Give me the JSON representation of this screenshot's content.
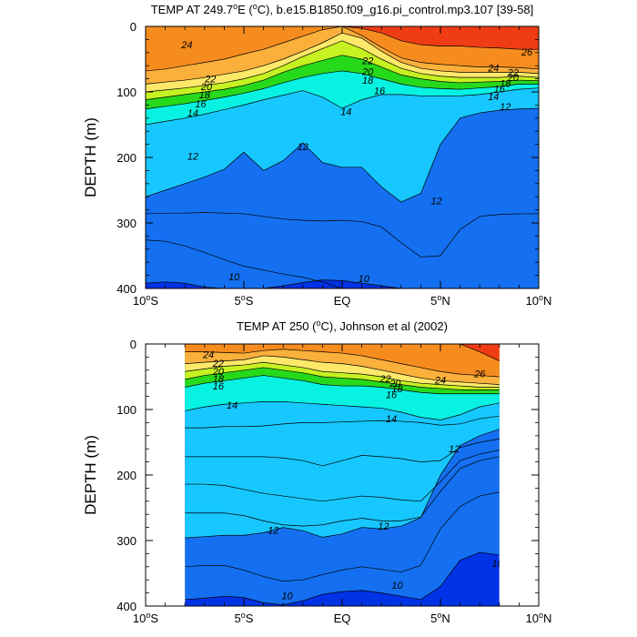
{
  "chart_data": [
    {
      "type": "contour",
      "title_pre": "TEMP AT 249.7",
      "title_sup": "o",
      "title_post": "E (",
      "title_sup2": "o",
      "title_end": "C), b.e15.B1850.f09_g16.pi_control.mp3.107 [39-58]",
      "ylabel": "DEPTH (m)",
      "xlim": [
        -10,
        10
      ],
      "ylim": [
        400,
        0
      ],
      "x_ticks": [
        {
          "v": -10,
          "main": "10",
          "sup": "o",
          "hemi": "S"
        },
        {
          "v": -5,
          "main": "5",
          "sup": "o",
          "hemi": "S"
        },
        {
          "v": 0,
          "main": "EQ",
          "sup": "",
          "hemi": ""
        },
        {
          "v": 5,
          "main": "5",
          "sup": "o",
          "hemi": "N"
        },
        {
          "v": 10,
          "main": "10",
          "sup": "o",
          "hemi": "N"
        }
      ],
      "y_ticks": [
        "0",
        "100",
        "200",
        "300",
        "400"
      ],
      "y_tick_values": [
        0,
        100,
        200,
        300,
        400
      ],
      "data_xrange": [
        -10,
        10
      ],
      "isotherms": [
        {
          "level": 26,
          "depths": [
            0,
            0,
            0,
            0,
            0,
            0,
            0,
            0,
            0,
            0,
            0,
            3,
            10,
            22,
            28,
            30,
            30,
            32,
            33,
            35,
            35
          ]
        },
        {
          "level": 24,
          "depths": [
            68,
            65,
            60,
            55,
            50,
            42,
            35,
            25,
            15,
            5,
            0,
            14,
            32,
            48,
            55,
            58,
            60,
            62,
            62,
            63,
            65
          ]
        },
        {
          "level": 22,
          "depths": [
            88,
            85,
            82,
            78,
            73,
            68,
            60,
            50,
            38,
            25,
            10,
            18,
            38,
            55,
            64,
            68,
            70,
            70,
            70,
            70,
            72
          ]
        },
        {
          "level": 20,
          "depths": [
            100,
            97,
            94,
            90,
            86,
            80,
            72,
            60,
            46,
            34,
            22,
            34,
            50,
            64,
            72,
            76,
            78,
            78,
            78,
            76,
            78
          ]
        },
        {
          "level": 18,
          "depths": [
            112,
            108,
            104,
            100,
            96,
            90,
            82,
            70,
            60,
            52,
            44,
            50,
            62,
            74,
            80,
            84,
            86,
            85,
            84,
            82,
            83
          ]
        },
        {
          "level": 16,
          "depths": [
            126,
            122,
            118,
            113,
            108,
            102,
            95,
            86,
            78,
            72,
            68,
            72,
            80,
            88,
            93,
            95,
            96,
            94,
            92,
            88,
            88
          ]
        },
        {
          "level": 14,
          "depths": [
            150,
            145,
            140,
            134,
            127,
            120,
            112,
            105,
            98,
            108,
            125,
            112,
            104,
            104,
            106,
            106,
            106,
            104,
            100,
            96,
            94
          ]
        },
        {
          "level": 12,
          "depths": [
            260,
            250,
            240,
            230,
            218,
            192,
            220,
            205,
            178,
            208,
            215,
            215,
            245,
            268,
            255,
            180,
            140,
            132,
            128,
            126,
            125
          ]
        },
        {
          "level": 10,
          "depths": [
            392,
            390,
            392,
            398,
            400,
            400,
            400,
            396,
            391,
            387,
            388,
            392,
            396,
            400,
            400,
            400,
            400,
            400,
            400,
            400,
            400
          ]
        }
      ],
      "extra_lines": [
        {
          "depths": [
            286,
            285,
            285,
            284,
            285,
            286,
            290,
            294,
            296,
            297,
            296,
            298,
            306,
            330,
            352,
            350,
            310,
            290,
            287,
            286,
            286
          ]
        },
        {
          "depths": [
            326,
            328,
            335,
            345,
            356,
            366,
            372,
            378,
            383,
            390,
            400,
            400,
            400,
            400,
            400,
            400,
            400,
            400,
            400,
            400,
            400
          ]
        }
      ],
      "contour_labels": [
        {
          "text": "24",
          "x": -7.9,
          "y": 28
        },
        {
          "text": "22",
          "x": -6.7,
          "y": 80
        },
        {
          "text": "20",
          "x": -6.9,
          "y": 92
        },
        {
          "text": "18",
          "x": -7.0,
          "y": 104
        },
        {
          "text": "16",
          "x": -7.2,
          "y": 118
        },
        {
          "text": "14",
          "x": -7.6,
          "y": 132
        },
        {
          "text": "22",
          "x": 1.3,
          "y": 52
        },
        {
          "text": "20",
          "x": 1.3,
          "y": 69
        },
        {
          "text": "18",
          "x": 1.3,
          "y": 82
        },
        {
          "text": "16",
          "x": 1.9,
          "y": 98
        },
        {
          "text": "14",
          "x": 0.2,
          "y": 130
        },
        {
          "text": "12",
          "x": -7.6,
          "y": 198
        },
        {
          "text": "12",
          "x": -2.0,
          "y": 183
        },
        {
          "text": "12",
          "x": 4.8,
          "y": 266
        },
        {
          "text": "24",
          "x": 7.7,
          "y": 63
        },
        {
          "text": "22",
          "x": 8.7,
          "y": 70
        },
        {
          "text": "20",
          "x": 8.7,
          "y": 78
        },
        {
          "text": "18",
          "x": 8.3,
          "y": 87
        },
        {
          "text": "16",
          "x": 8.0,
          "y": 95
        },
        {
          "text": "14",
          "x": 7.7,
          "y": 107
        },
        {
          "text": "12",
          "x": 8.3,
          "y": 122
        },
        {
          "text": "26",
          "x": 9.4,
          "y": 39
        },
        {
          "text": "10",
          "x": -5.5,
          "y": 382
        },
        {
          "text": "10",
          "x": 1.1,
          "y": 385
        }
      ]
    },
    {
      "type": "contour",
      "title_pre": "TEMP AT 250 (",
      "title_sup": "o",
      "title_post": "C), Johnson et al (2002)",
      "title_sup2": "",
      "title_end": "",
      "ylabel": "DEPTH (m)",
      "xlim": [
        -10,
        10
      ],
      "ylim": [
        400,
        0
      ],
      "x_ticks": [
        {
          "v": -10,
          "main": "10",
          "sup": "o",
          "hemi": "S"
        },
        {
          "v": -5,
          "main": "5",
          "sup": "o",
          "hemi": "S"
        },
        {
          "v": 0,
          "main": "EQ",
          "sup": "",
          "hemi": ""
        },
        {
          "v": 5,
          "main": "5",
          "sup": "o",
          "hemi": "N"
        },
        {
          "v": 10,
          "main": "10",
          "sup": "o",
          "hemi": "N"
        }
      ],
      "y_ticks": [
        "0",
        "100",
        "200",
        "300",
        "400"
      ],
      "y_tick_values": [
        0,
        100,
        200,
        300,
        400
      ],
      "data_xrange": [
        -8,
        8
      ],
      "isotherms": [
        {
          "level": 26,
          "depths": [
            0,
            0,
            0,
            0,
            0,
            0,
            0,
            0,
            0,
            0,
            0,
            0,
            0,
            0,
            0,
            0,
            0,
            12,
            26,
            34,
            36
          ]
        },
        {
          "level": 24,
          "depths": [
            0,
            0,
            12,
            12,
            13,
            14,
            10,
            8,
            10,
            12,
            14,
            18,
            24,
            30,
            36,
            42,
            46,
            48,
            50,
            52,
            55
          ]
        },
        {
          "level": 22,
          "depths": [
            0,
            0,
            30,
            28,
            26,
            24,
            18,
            20,
            24,
            28,
            30,
            34,
            40,
            46,
            52,
            56,
            58,
            60,
            62,
            62,
            64
          ]
        },
        {
          "level": 20,
          "depths": [
            0,
            0,
            42,
            38,
            34,
            32,
            28,
            32,
            36,
            42,
            44,
            46,
            50,
            56,
            60,
            62,
            64,
            66,
            66,
            67,
            68
          ]
        },
        {
          "level": 18,
          "depths": [
            0,
            0,
            54,
            48,
            44,
            40,
            36,
            40,
            44,
            50,
            52,
            54,
            58,
            62,
            66,
            68,
            70,
            70,
            70,
            72,
            73
          ]
        },
        {
          "level": 16,
          "depths": [
            0,
            0,
            66,
            60,
            56,
            52,
            48,
            52,
            56,
            62,
            64,
            64,
            66,
            70,
            74,
            76,
            76,
            76,
            76,
            77,
            78
          ]
        },
        {
          "level": 14,
          "depths": [
            0,
            0,
            102,
            96,
            92,
            90,
            88,
            88,
            90,
            92,
            94,
            96,
            98,
            104,
            112,
            116,
            108,
            96,
            90,
            90,
            92
          ]
        },
        {
          "level": 12,
          "depths": [
            0,
            0,
            296,
            294,
            292,
            292,
            288,
            280,
            285,
            295,
            290,
            280,
            282,
            278,
            265,
            200,
            155,
            140,
            130,
            125,
            125
          ]
        },
        {
          "level": 10,
          "depths": [
            0,
            0,
            390,
            388,
            385,
            387,
            395,
            398,
            392,
            382,
            378,
            376,
            380,
            385,
            390,
            370,
            330,
            318,
            322,
            338,
            340
          ]
        }
      ],
      "extra_lines": [
        {
          "depths": [
            0,
            0,
            128,
            128,
            126,
            126,
            125,
            122,
            120,
            120,
            119,
            118,
            117,
            118,
            120,
            124,
            122,
            114,
            110,
            108,
            108
          ]
        },
        {
          "depths": [
            0,
            0,
            172,
            172,
            172,
            172,
            172,
            174,
            178,
            186,
            178,
            170,
            172,
            175,
            180,
            178,
            158,
            150,
            145,
            142,
            140
          ]
        },
        {
          "depths": [
            0,
            0,
            214,
            214,
            216,
            222,
            228,
            232,
            236,
            240,
            236,
            232,
            234,
            238,
            240,
            210,
            178,
            168,
            162,
            158,
            156
          ]
        },
        {
          "depths": [
            0,
            0,
            258,
            258,
            258,
            262,
            270,
            276,
            278,
            276,
            270,
            266,
            270,
            270,
            264,
            225,
            190,
            178,
            172,
            168,
            166
          ]
        },
        {
          "depths": [
            0,
            0,
            340,
            338,
            338,
            345,
            355,
            362,
            360,
            352,
            345,
            340,
            344,
            348,
            338,
            282,
            248,
            232,
            226,
            228,
            232
          ]
        }
      ],
      "contour_labels": [
        {
          "text": "24",
          "x": -6.8,
          "y": 16
        },
        {
          "text": "22",
          "x": -6.3,
          "y": 29
        },
        {
          "text": "20",
          "x": -6.3,
          "y": 42
        },
        {
          "text": "18",
          "x": -6.3,
          "y": 53
        },
        {
          "text": "16",
          "x": -6.3,
          "y": 64
        },
        {
          "text": "14",
          "x": -5.6,
          "y": 93
        },
        {
          "text": "22",
          "x": 2.2,
          "y": 53
        },
        {
          "text": "20",
          "x": 2.7,
          "y": 60
        },
        {
          "text": "18",
          "x": 2.8,
          "y": 68
        },
        {
          "text": "16",
          "x": 2.5,
          "y": 77
        },
        {
          "text": "14",
          "x": 2.5,
          "y": 114
        },
        {
          "text": "24",
          "x": 5.0,
          "y": 55
        },
        {
          "text": "26",
          "x": 7.0,
          "y": 45
        },
        {
          "text": "12",
          "x": -3.5,
          "y": 284
        },
        {
          "text": "12",
          "x": 2.1,
          "y": 278
        },
        {
          "text": "12",
          "x": 5.7,
          "y": 160
        },
        {
          "text": "10",
          "x": -2.8,
          "y": 384
        },
        {
          "text": "10",
          "x": 2.8,
          "y": 368
        },
        {
          "text": "10",
          "x": 7.9,
          "y": 335
        }
      ]
    }
  ],
  "colors": {
    "bands": [
      {
        "above": 26,
        "color": "#f03c14"
      },
      {
        "above": 24,
        "color": "#f78c1e"
      },
      {
        "above": 22,
        "color": "#fbb03b"
      },
      {
        "above": 21,
        "color": "#fdd24a"
      },
      {
        "above": 20,
        "color": "#fee86a"
      },
      {
        "above": 19,
        "color": "#f2f524"
      },
      {
        "above": 18,
        "color": "#c6f221"
      },
      {
        "above": 17,
        "color": "#7cec1a"
      },
      {
        "above": 16,
        "color": "#27d91b"
      },
      {
        "above": 15,
        "color": "#14e68c"
      },
      {
        "above": 14,
        "color": "#08f2e2"
      },
      {
        "above": 13,
        "color": "#00e0ff"
      },
      {
        "above": 12,
        "color": "#16c8ff"
      },
      {
        "above": 11,
        "color": "#0aa0f5"
      },
      {
        "above": 10,
        "color": "#1470f0"
      },
      {
        "above": 0,
        "color": "#0032e6"
      }
    ],
    "line": "#000000",
    "background": "#ffffff"
  }
}
